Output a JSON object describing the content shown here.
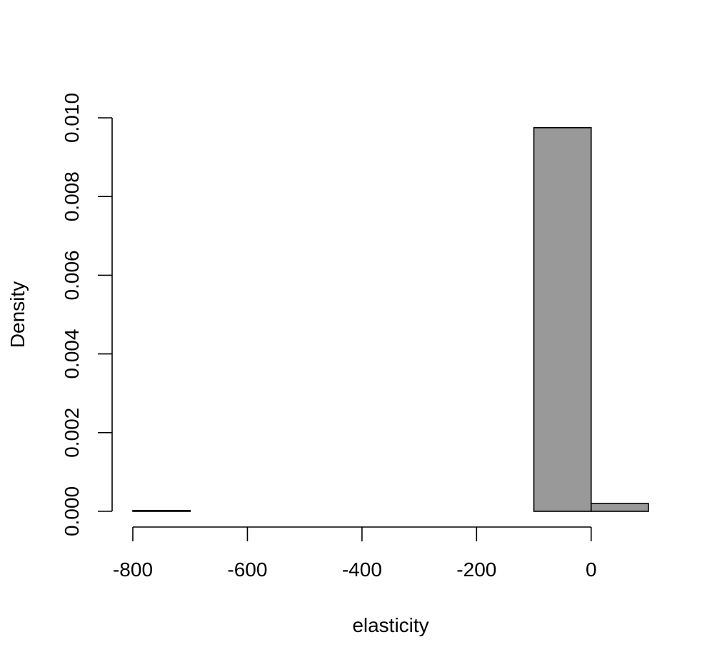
{
  "chart_data": {
    "type": "bar",
    "subtype": "histogram",
    "title": "",
    "xlabel": "elasticity",
    "ylabel": "Density",
    "bin_edges": [
      -800,
      -700,
      -600,
      -500,
      -400,
      -300,
      -200,
      -100,
      0,
      100
    ],
    "values": [
      2e-05,
      0,
      0,
      0,
      0,
      0,
      0,
      0.00975,
      0.0002
    ],
    "xlim": [
      -800,
      100
    ],
    "ylim": [
      0,
      0.01
    ],
    "x_ticks": [
      -800,
      -600,
      -400,
      -200,
      0
    ],
    "x_tick_labels": [
      "-800",
      "-600",
      "-400",
      "-200",
      "0"
    ],
    "y_ticks": [
      0,
      0.002,
      0.004,
      0.006,
      0.008,
      0.01
    ],
    "y_tick_labels": [
      "0.000",
      "0.002",
      "0.004",
      "0.006",
      "0.008",
      "0.010"
    ],
    "grid": false,
    "legend": "none",
    "bar_fill": "#999999",
    "bar_stroke": "#000000"
  }
}
